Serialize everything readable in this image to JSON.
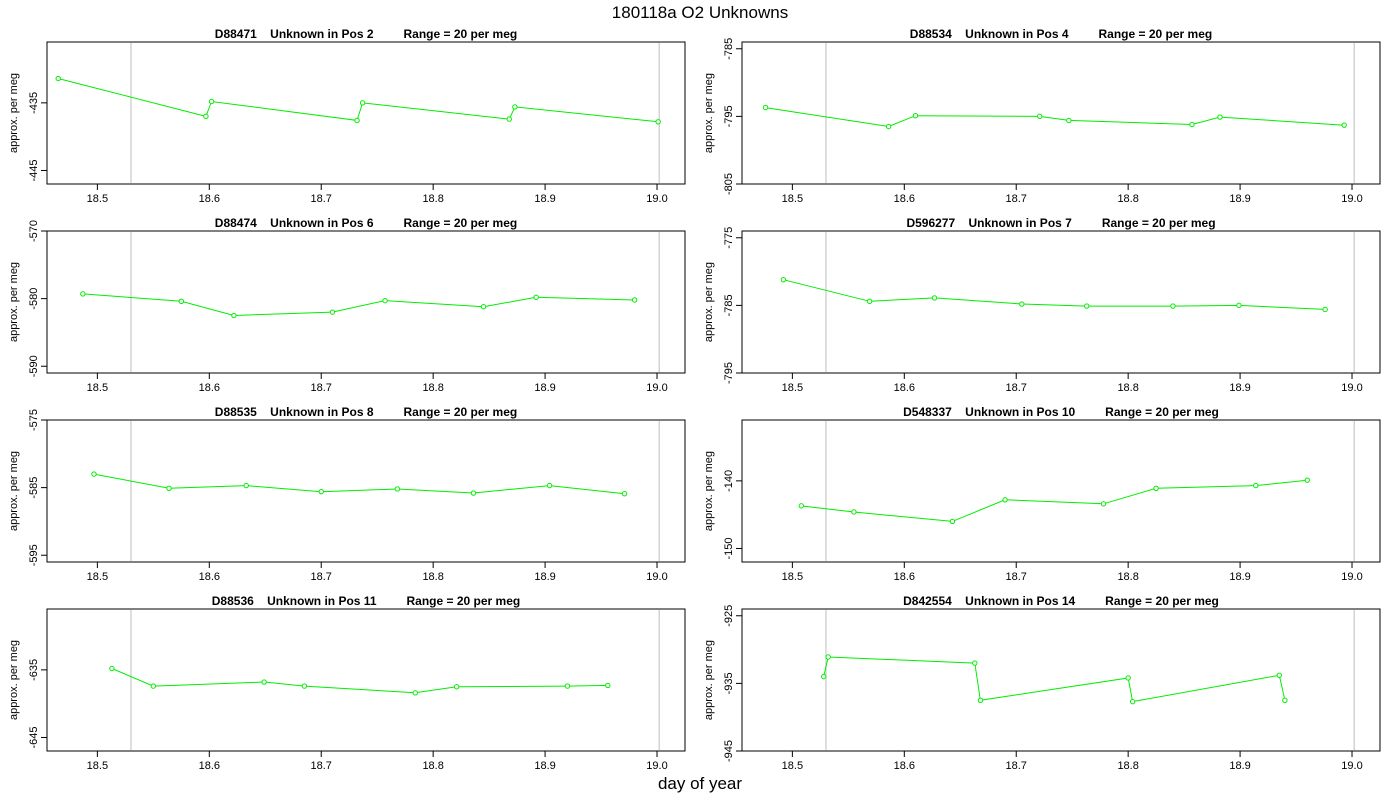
{
  "page": {
    "title": "180118a  O2 Unknowns",
    "xlabel": "day of year"
  },
  "colors": {
    "series": "#00ee00",
    "vline": "#d3d3d3",
    "axis": "#000000"
  },
  "chart_data": [
    {
      "type": "line",
      "title": "D88471    Unknown in Pos 2         Range = 20 per meg",
      "ylabel": "approx. per meg",
      "xlim": [
        18.455,
        19.025
      ],
      "ylim": [
        -447,
        -426
      ],
      "xticks": [
        18.5,
        18.6,
        18.7,
        18.8,
        18.9,
        19.0
      ],
      "xtick_labels": [
        "18.5",
        "18.6",
        "18.7",
        "18.8",
        "18.9",
        "19.0"
      ],
      "yticks": [
        -435,
        -445
      ],
      "ytick_labels": [
        "-435",
        "-445"
      ],
      "vlines": [
        18.53,
        19.002
      ],
      "x": [
        18.465,
        18.597,
        18.602,
        18.732,
        18.737,
        18.868,
        18.873,
        19.001
      ],
      "y": [
        -431.4,
        -437.0,
        -434.8,
        -437.6,
        -435.0,
        -437.4,
        -435.6,
        -437.8
      ]
    },
    {
      "type": "line",
      "title": "D88534    Unknown in Pos 4         Range = 20 per meg",
      "ylabel": "approx. per meg",
      "xlim": [
        18.455,
        19.025
      ],
      "ylim": [
        -805,
        -784
      ],
      "xticks": [
        18.5,
        18.6,
        18.7,
        18.8,
        18.9,
        19.0
      ],
      "xtick_labels": [
        "18.5",
        "18.6",
        "18.7",
        "18.8",
        "18.9",
        "19.0"
      ],
      "yticks": [
        -785,
        -795,
        -805
      ],
      "ytick_labels": [
        "-785",
        "-795",
        "-805"
      ],
      "vlines": [
        18.53,
        19.002
      ],
      "x": [
        18.476,
        18.586,
        18.61,
        18.721,
        18.747,
        18.857,
        18.882,
        18.993
      ],
      "y": [
        -793.7,
        -796.5,
        -794.9,
        -795.0,
        -795.6,
        -796.2,
        -795.1,
        -796.3
      ]
    },
    {
      "type": "line",
      "title": "D88474    Unknown in Pos 6         Range = 20 per meg",
      "ylabel": "approx. per meg",
      "xlim": [
        18.455,
        19.025
      ],
      "ylim": [
        -591,
        -570
      ],
      "xticks": [
        18.5,
        18.6,
        18.7,
        18.8,
        18.9,
        19.0
      ],
      "xtick_labels": [
        "18.5",
        "18.6",
        "18.7",
        "18.8",
        "18.9",
        "19.0"
      ],
      "yticks": [
        -570,
        -580,
        -590
      ],
      "ytick_labels": [
        "-570",
        "-580",
        "-590"
      ],
      "vlines": [
        18.53,
        19.002
      ],
      "x": [
        18.487,
        18.575,
        18.622,
        18.71,
        18.757,
        18.845,
        18.892,
        18.98
      ],
      "y": [
        -579.3,
        -580.4,
        -582.5,
        -582.0,
        -580.3,
        -581.2,
        -579.8,
        -580.2
      ]
    },
    {
      "type": "line",
      "title": "D596277    Unknown in Pos 7         Range = 20 per meg",
      "ylabel": "approx. per meg",
      "xlim": [
        18.455,
        19.025
      ],
      "ylim": [
        -795,
        -774
      ],
      "xticks": [
        18.5,
        18.6,
        18.7,
        18.8,
        18.9,
        19.0
      ],
      "xtick_labels": [
        "18.5",
        "18.6",
        "18.7",
        "18.8",
        "18.9",
        "19.0"
      ],
      "yticks": [
        -775,
        -785,
        -795
      ],
      "ytick_labels": [
        "-775",
        "-785",
        "-795"
      ],
      "vlines": [
        18.53,
        19.002
      ],
      "x": [
        18.492,
        18.569,
        18.627,
        18.705,
        18.763,
        18.84,
        18.899,
        18.976
      ],
      "y": [
        -781.2,
        -784.4,
        -783.9,
        -784.8,
        -785.1,
        -785.1,
        -785.0,
        -785.6
      ]
    },
    {
      "type": "line",
      "title": "D88535    Unknown in Pos 8         Range = 20 per meg",
      "ylabel": "approx. per meg",
      "xlim": [
        18.455,
        19.025
      ],
      "ylim": [
        -596,
        -575
      ],
      "xticks": [
        18.5,
        18.6,
        18.7,
        18.8,
        18.9,
        19.0
      ],
      "xtick_labels": [
        "18.5",
        "18.6",
        "18.7",
        "18.8",
        "18.9",
        "19.0"
      ],
      "yticks": [
        -575,
        -585,
        -595
      ],
      "ytick_labels": [
        "-575",
        "-585",
        "-595"
      ],
      "vlines": [
        18.53,
        19.002
      ],
      "x": [
        18.497,
        18.564,
        18.633,
        18.7,
        18.768,
        18.836,
        18.904,
        18.971
      ],
      "y": [
        -583.0,
        -585.1,
        -584.7,
        -585.6,
        -585.2,
        -585.8,
        -584.7,
        -585.9
      ]
    },
    {
      "type": "line",
      "title": "D548337    Unknown in Pos 10         Range = 20 per meg",
      "ylabel": "approx. per meg",
      "xlim": [
        18.455,
        19.025
      ],
      "ylim": [
        -152,
        -131
      ],
      "xticks": [
        18.5,
        18.6,
        18.7,
        18.8,
        18.9,
        19.0
      ],
      "xtick_labels": [
        "18.5",
        "18.6",
        "18.7",
        "18.8",
        "18.9",
        "19.0"
      ],
      "yticks": [
        -140,
        -150
      ],
      "ytick_labels": [
        "-140",
        "-150"
      ],
      "vlines": [
        18.53,
        19.002
      ],
      "x": [
        18.508,
        18.555,
        18.643,
        18.69,
        18.778,
        18.825,
        18.914,
        18.96
      ],
      "y": [
        -143.7,
        -144.6,
        -146.0,
        -142.8,
        -143.4,
        -141.1,
        -140.7,
        -139.9
      ]
    },
    {
      "type": "line",
      "title": "D88536    Unknown in Pos 11         Range = 20 per meg",
      "ylabel": "approx. per meg",
      "xlim": [
        18.455,
        19.025
      ],
      "ylim": [
        -647,
        -626
      ],
      "xticks": [
        18.5,
        18.6,
        18.7,
        18.8,
        18.9,
        19.0
      ],
      "xtick_labels": [
        "18.5",
        "18.6",
        "18.7",
        "18.8",
        "18.9",
        "19.0"
      ],
      "yticks": [
        -635,
        -645
      ],
      "ytick_labels": [
        "-635",
        "-645"
      ],
      "vlines": [
        18.53,
        19.002
      ],
      "x": [
        18.513,
        18.55,
        18.649,
        18.685,
        18.784,
        18.821,
        18.92,
        18.956
      ],
      "y": [
        -634.8,
        -637.4,
        -636.8,
        -637.4,
        -638.4,
        -637.5,
        -637.4,
        -637.3
      ]
    },
    {
      "type": "line",
      "title": "D842554    Unknown in Pos 14         Range = 20 per meg",
      "ylabel": "approx. per meg",
      "xlim": [
        18.455,
        19.025
      ],
      "ylim": [
        -945,
        -924
      ],
      "xticks": [
        18.5,
        18.6,
        18.7,
        18.8,
        18.9,
        19.0
      ],
      "xtick_labels": [
        "18.5",
        "18.6",
        "18.7",
        "18.8",
        "18.9",
        "19.0"
      ],
      "yticks": [
        -925,
        -935,
        -945
      ],
      "ytick_labels": [
        "-925",
        "-935",
        "-945"
      ],
      "vlines": [
        18.53,
        19.002
      ],
      "x": [
        18.528,
        18.532,
        18.663,
        18.668,
        18.8,
        18.804,
        18.935,
        18.94
      ],
      "y": [
        -934.0,
        -931.1,
        -932.0,
        -937.5,
        -934.2,
        -937.7,
        -933.8,
        -937.5
      ]
    }
  ]
}
